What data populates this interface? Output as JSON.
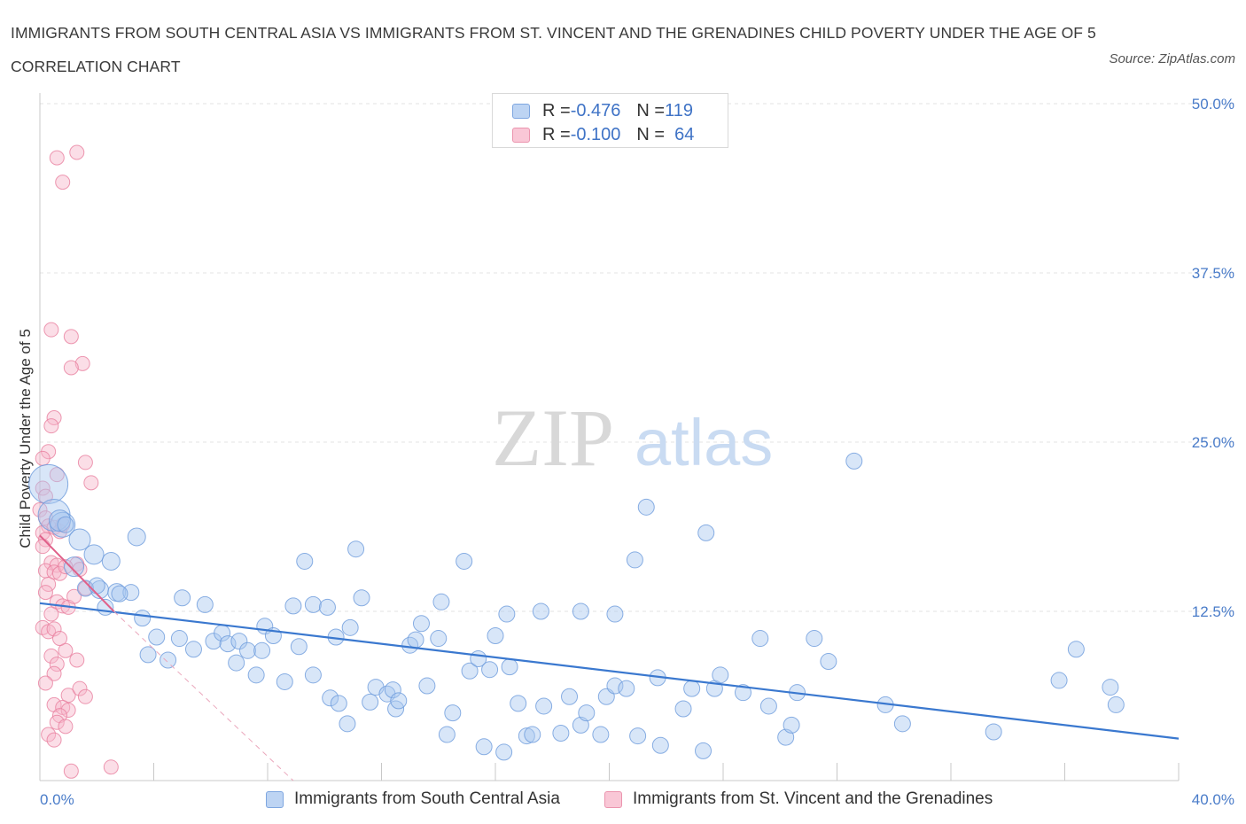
{
  "header": {
    "title": "IMMIGRANTS FROM SOUTH CENTRAL ASIA VS IMMIGRANTS FROM ST. VINCENT AND THE GRENADINES CHILD POVERTY UNDER THE AGE OF 5 CORRELATION CHART",
    "source": "Source: ZipAtlas.com"
  },
  "watermark": {
    "zip": "ZIP",
    "atlas": "atlas"
  },
  "legend": {
    "series1": {
      "r_label": "R = ",
      "r_value": "-0.476",
      "n_label": "N = ",
      "n_value": "119"
    },
    "series2": {
      "r_label": "R = ",
      "r_value": "-0.100",
      "n_label": "N = ",
      "n_value": "64"
    }
  },
  "colors": {
    "blue_fill": "#a9c8ef",
    "blue_stroke": "#6d9bdc",
    "blue_line": "#3a78cf",
    "pink_fill": "#f6b6c9",
    "pink_stroke": "#e9809f",
    "pink_line": "#e0608a",
    "tick_text": "#4a7cc9",
    "grid": "#e3e3e3"
  },
  "chart_data": {
    "type": "scatter",
    "xlabel": "",
    "ylabel": "Child Poverty Under the Age of 5",
    "xlim": [
      0,
      40
    ],
    "ylim": [
      0,
      50
    ],
    "x_tick_labels": [
      "0.0%",
      "40.0%"
    ],
    "y_ticks": [
      12.5,
      25.0,
      37.5,
      50.0
    ],
    "y_tick_labels": [
      "12.5%",
      "25.0%",
      "37.5%",
      "50.0%"
    ],
    "grid": "horizontal dashed",
    "legend_position": "top-center",
    "series": [
      {
        "name": "Immigrants from South Central Asia",
        "color": "#a9c8ef",
        "trend": {
          "x": [
            0,
            40
          ],
          "y": [
            13.1,
            3.1
          ]
        },
        "points": [
          [
            0.3,
            21.9,
            22
          ],
          [
            0.5,
            19.6,
            18
          ],
          [
            0.8,
            18.9,
            14
          ],
          [
            0.7,
            19.2,
            12
          ],
          [
            1.4,
            17.8,
            12
          ],
          [
            1.2,
            15.8,
            11
          ],
          [
            1.9,
            16.7,
            11
          ],
          [
            2.5,
            16.2,
            10
          ],
          [
            3.4,
            18.0,
            10
          ],
          [
            2.1,
            14.1,
            10
          ],
          [
            2.7,
            13.9,
            10
          ],
          [
            1.6,
            14.2,
            9
          ],
          [
            3.2,
            13.9,
            9
          ],
          [
            2.3,
            12.8,
            9
          ],
          [
            3.6,
            12.0,
            9
          ],
          [
            5.0,
            13.5,
            9
          ],
          [
            5.8,
            13.0,
            9
          ],
          [
            4.1,
            10.6,
            9
          ],
          [
            4.9,
            10.5,
            9
          ],
          [
            3.8,
            9.3,
            9
          ],
          [
            4.5,
            8.9,
            9
          ],
          [
            5.4,
            9.7,
            9
          ],
          [
            6.1,
            10.3,
            9
          ],
          [
            6.4,
            10.9,
            9
          ],
          [
            6.6,
            10.1,
            9
          ],
          [
            7.0,
            10.3,
            9
          ],
          [
            7.3,
            9.6,
            9
          ],
          [
            6.9,
            8.7,
            9
          ],
          [
            7.8,
            9.6,
            9
          ],
          [
            7.9,
            11.4,
            9
          ],
          [
            8.2,
            10.7,
            9
          ],
          [
            8.9,
            12.9,
            9
          ],
          [
            9.1,
            9.9,
            9
          ],
          [
            9.3,
            16.2,
            9
          ],
          [
            9.6,
            13.0,
            9
          ],
          [
            10.1,
            12.8,
            9
          ],
          [
            7.6,
            7.8,
            9
          ],
          [
            8.6,
            7.3,
            9
          ],
          [
            9.6,
            7.8,
            9
          ],
          [
            10.2,
            6.1,
            9
          ],
          [
            10.5,
            5.7,
            9
          ],
          [
            10.4,
            10.6,
            9
          ],
          [
            10.9,
            11.3,
            9
          ],
          [
            11.1,
            17.1,
            9
          ],
          [
            11.3,
            13.5,
            9
          ],
          [
            10.8,
            4.2,
            9
          ],
          [
            11.6,
            5.8,
            9
          ],
          [
            11.8,
            6.9,
            9
          ],
          [
            12.2,
            6.4,
            9
          ],
          [
            12.4,
            6.7,
            9
          ],
          [
            12.5,
            5.3,
            9
          ],
          [
            12.6,
            5.9,
            9
          ],
          [
            13.0,
            10.0,
            9
          ],
          [
            13.2,
            10.4,
            9
          ],
          [
            13.4,
            11.6,
            9
          ],
          [
            13.6,
            7.0,
            9
          ],
          [
            14.0,
            10.5,
            9
          ],
          [
            14.1,
            13.2,
            9
          ],
          [
            14.3,
            3.4,
            9
          ],
          [
            14.5,
            5.0,
            9
          ],
          [
            14.9,
            16.2,
            9
          ],
          [
            15.1,
            8.1,
            9
          ],
          [
            15.4,
            9.0,
            9
          ],
          [
            15.6,
            2.5,
            9
          ],
          [
            15.8,
            8.2,
            9
          ],
          [
            16.0,
            10.7,
            9
          ],
          [
            16.3,
            2.1,
            9
          ],
          [
            16.4,
            12.3,
            9
          ],
          [
            16.5,
            8.4,
            9
          ],
          [
            16.8,
            5.7,
            9
          ],
          [
            17.1,
            3.3,
            9
          ],
          [
            17.3,
            3.4,
            9
          ],
          [
            17.7,
            5.5,
            9
          ],
          [
            17.6,
            12.5,
            9
          ],
          [
            18.3,
            3.5,
            9
          ],
          [
            18.6,
            6.2,
            9
          ],
          [
            19.0,
            4.1,
            9
          ],
          [
            19.2,
            5.0,
            9
          ],
          [
            19.0,
            12.5,
            9
          ],
          [
            19.7,
            3.4,
            9
          ],
          [
            19.9,
            6.2,
            9
          ],
          [
            20.2,
            7.0,
            9
          ],
          [
            20.6,
            6.8,
            9
          ],
          [
            20.2,
            12.3,
            9
          ],
          [
            20.9,
            16.3,
            9
          ],
          [
            21.0,
            3.3,
            9
          ],
          [
            21.3,
            20.2,
            9
          ],
          [
            21.7,
            7.6,
            9
          ],
          [
            21.8,
            2.6,
            9
          ],
          [
            22.6,
            5.3,
            9
          ],
          [
            22.9,
            6.8,
            9
          ],
          [
            23.3,
            2.2,
            9
          ],
          [
            23.7,
            6.8,
            9
          ],
          [
            23.9,
            7.8,
            9
          ],
          [
            23.4,
            18.3,
            9
          ],
          [
            24.7,
            6.5,
            9
          ],
          [
            25.3,
            10.5,
            9
          ],
          [
            25.6,
            5.5,
            9
          ],
          [
            26.2,
            3.2,
            9
          ],
          [
            26.4,
            4.1,
            9
          ],
          [
            26.6,
            6.5,
            9
          ],
          [
            27.2,
            10.5,
            9
          ],
          [
            27.7,
            8.8,
            9
          ],
          [
            28.6,
            23.6,
            9
          ],
          [
            29.7,
            5.6,
            9
          ],
          [
            30.3,
            4.2,
            9
          ],
          [
            33.5,
            3.6,
            9
          ],
          [
            35.8,
            7.4,
            9
          ],
          [
            36.4,
            9.7,
            9
          ],
          [
            37.6,
            6.9,
            9
          ],
          [
            37.8,
            5.6,
            9
          ],
          [
            0.9,
            18.9,
            9
          ],
          [
            2.0,
            14.4,
            9
          ],
          [
            2.8,
            13.8,
            9
          ]
        ]
      },
      {
        "name": "Immigrants from St. Vincent and the Grenadines",
        "color": "#f6b6c9",
        "trend": {
          "x": [
            0,
            2.6
          ],
          "y": [
            18.1,
            12.5
          ]
        },
        "trend_extension": {
          "x": [
            2.6,
            8.9
          ],
          "y": [
            12.5,
            0
          ]
        },
        "points": [
          [
            0.6,
            46.0,
            8
          ],
          [
            1.3,
            46.4,
            8
          ],
          [
            0.8,
            44.2,
            8
          ],
          [
            0.4,
            33.3,
            8
          ],
          [
            1.1,
            32.8,
            8
          ],
          [
            1.5,
            30.8,
            8
          ],
          [
            1.1,
            30.5,
            8
          ],
          [
            0.5,
            26.8,
            8
          ],
          [
            0.4,
            26.2,
            8
          ],
          [
            0.3,
            24.3,
            8
          ],
          [
            0.1,
            23.8,
            8
          ],
          [
            0.6,
            22.6,
            8
          ],
          [
            1.6,
            23.5,
            8
          ],
          [
            1.8,
            22.0,
            8
          ],
          [
            0.1,
            21.6,
            8
          ],
          [
            0.2,
            21.0,
            8
          ],
          [
            0.0,
            20.0,
            8
          ],
          [
            0.2,
            19.4,
            8
          ],
          [
            0.3,
            18.8,
            8
          ],
          [
            0.1,
            18.3,
            8
          ],
          [
            0.5,
            18.7,
            8
          ],
          [
            0.7,
            18.4,
            8
          ],
          [
            0.8,
            18.9,
            8
          ],
          [
            0.2,
            17.8,
            8
          ],
          [
            0.1,
            17.3,
            8
          ],
          [
            0.4,
            16.1,
            8
          ],
          [
            0.6,
            15.9,
            8
          ],
          [
            0.2,
            15.5,
            8
          ],
          [
            0.5,
            15.4,
            8
          ],
          [
            0.7,
            15.3,
            8
          ],
          [
            1.3,
            16.0,
            8
          ],
          [
            1.4,
            15.6,
            8
          ],
          [
            0.3,
            14.5,
            8
          ],
          [
            0.2,
            13.9,
            8
          ],
          [
            0.6,
            13.2,
            8
          ],
          [
            0.8,
            12.9,
            8
          ],
          [
            1.0,
            12.8,
            8
          ],
          [
            1.6,
            14.2,
            8
          ],
          [
            0.1,
            11.3,
            8
          ],
          [
            0.3,
            11.0,
            8
          ],
          [
            0.5,
            11.2,
            8
          ],
          [
            0.9,
            9.6,
            8
          ],
          [
            0.4,
            9.2,
            8
          ],
          [
            0.6,
            8.6,
            8
          ],
          [
            1.3,
            8.9,
            8
          ],
          [
            0.5,
            7.9,
            8
          ],
          [
            1.0,
            6.3,
            8
          ],
          [
            1.4,
            6.8,
            8
          ],
          [
            1.6,
            6.2,
            8
          ],
          [
            0.5,
            5.6,
            8
          ],
          [
            0.8,
            5.4,
            8
          ],
          [
            1.0,
            5.2,
            8
          ],
          [
            0.7,
            4.8,
            8
          ],
          [
            0.6,
            4.3,
            8
          ],
          [
            0.9,
            4.0,
            8
          ],
          [
            0.3,
            3.4,
            8
          ],
          [
            0.5,
            3.0,
            8
          ],
          [
            1.1,
            0.7,
            8
          ],
          [
            2.5,
            1.0,
            8
          ],
          [
            0.2,
            7.2,
            8
          ],
          [
            1.2,
            13.6,
            8
          ],
          [
            0.9,
            15.8,
            8
          ],
          [
            0.4,
            12.3,
            8
          ],
          [
            0.7,
            10.5,
            8
          ]
        ]
      }
    ]
  }
}
